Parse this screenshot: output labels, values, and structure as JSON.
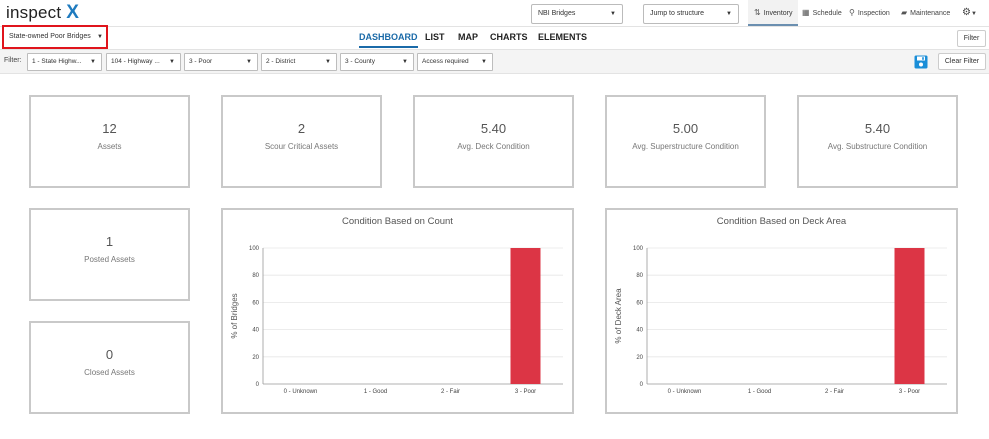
{
  "app": {
    "logo_text": "inspect",
    "logo_mark": "X"
  },
  "topnav": {
    "asset_type": "NBI Bridges",
    "jump": "Jump to structure",
    "items": [
      {
        "label": "Inventory",
        "icon": "sort-icon",
        "active": true
      },
      {
        "label": "Schedule",
        "icon": "calendar-icon"
      },
      {
        "label": "Inspection",
        "icon": "search-icon"
      },
      {
        "label": "Maintenance",
        "icon": "briefcase-icon"
      }
    ],
    "settings_icon": "gear-icon"
  },
  "view": {
    "selected": "State-owned Poor Bridges"
  },
  "tabs": [
    "DASHBOARD",
    "LIST",
    "MAP",
    "CHARTS",
    "ELEMENTS"
  ],
  "active_tab": "DASHBOARD",
  "buttons": {
    "filter": "Filter",
    "clear_filter": "Clear Filter"
  },
  "filterbar": {
    "label": "Filter:",
    "filters": [
      "1 - State Highw...",
      "104 - Highway ...",
      "3 - Poor",
      "2 - District",
      "3 - County",
      "Access required"
    ]
  },
  "metrics": [
    {
      "value": "12",
      "label": "Assets"
    },
    {
      "value": "2",
      "label": "Scour Critical Assets"
    },
    {
      "value": "5.40",
      "label": "Avg. Deck Condition"
    },
    {
      "value": "5.00",
      "label": "Avg. Superstructure Condition"
    },
    {
      "value": "5.40",
      "label": "Avg. Substructure Condition"
    },
    {
      "value": "1",
      "label": "Posted Assets"
    },
    {
      "value": "0",
      "label": "Closed Assets"
    }
  ],
  "colors": {
    "accent": "#1a6aa8",
    "bar": "#dc3545",
    "highlight_border": "#e0141c"
  },
  "chart_data": [
    {
      "type": "bar",
      "title": "Condition Based on Count",
      "categories": [
        "0 - Unknown",
        "1 - Good",
        "2 - Fair",
        "3 - Poor"
      ],
      "values": [
        0,
        0,
        0,
        100
      ],
      "xlabel": "",
      "ylabel": "% of Bridges",
      "ylim": [
        0,
        100
      ],
      "yticks": [
        0,
        20,
        40,
        60,
        80,
        100
      ],
      "grid": true
    },
    {
      "type": "bar",
      "title": "Condition Based on Deck Area",
      "categories": [
        "0 - Unknown",
        "1 - Good",
        "2 - Fair",
        "3 - Poor"
      ],
      "values": [
        0,
        0,
        0,
        100
      ],
      "xlabel": "",
      "ylabel": "% of Deck Area",
      "ylim": [
        0,
        100
      ],
      "yticks": [
        0,
        20,
        40,
        60,
        80,
        100
      ],
      "grid": true
    }
  ]
}
